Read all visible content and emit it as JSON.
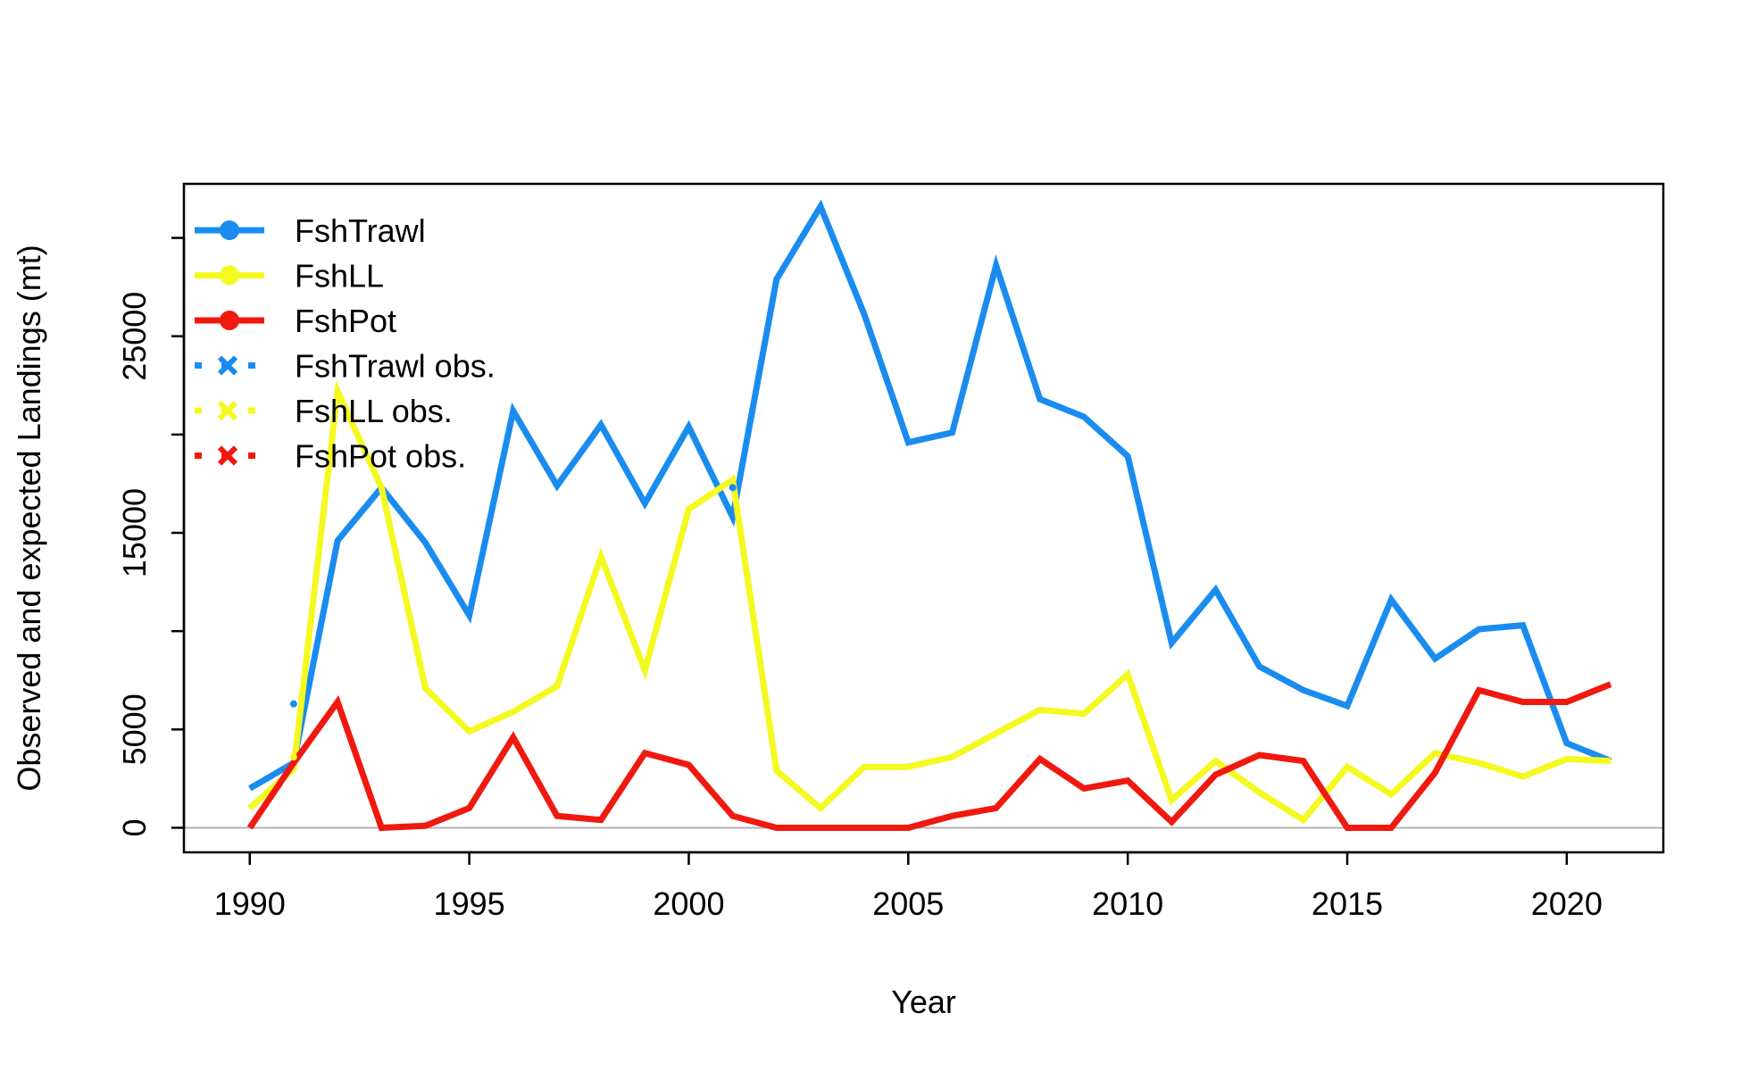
{
  "chart_data": {
    "type": "line",
    "xlabel": "Year",
    "ylabel": "Observed and expected Landings (mt)",
    "xlim": [
      1988.5,
      2022.2
    ],
    "ylim": [
      -1250,
      32750
    ],
    "x_ticks": [
      1990,
      1995,
      2000,
      2005,
      2010,
      2015,
      2020
    ],
    "y_ticks": [
      0,
      5000,
      10000,
      15000,
      20000,
      25000,
      30000
    ],
    "y_tick_labels": [
      "0",
      "5000",
      "",
      "15000",
      "",
      "25000",
      ""
    ],
    "grid": false,
    "zero_line": true,
    "legend_position": "top-left",
    "x": [
      1990,
      1991,
      1992,
      1993,
      1994,
      1995,
      1996,
      1997,
      1998,
      1999,
      2000,
      2001,
      2002,
      2003,
      2004,
      2005,
      2006,
      2007,
      2008,
      2009,
      2010,
      2011,
      2012,
      2013,
      2014,
      2015,
      2016,
      2017,
      2018,
      2019,
      2020,
      2021
    ],
    "series": [
      {
        "name": "FshTrawl",
        "color": "#1a8cf0",
        "values": [
          2000,
          3300,
          14600,
          17300,
          14500,
          10800,
          21200,
          17400,
          20500,
          16500,
          20400,
          15800,
          27900,
          31600,
          26100,
          19600,
          20100,
          28600,
          21800,
          20900,
          18900,
          9400,
          12100,
          8200,
          7000,
          6200,
          11600,
          8600,
          10100,
          10300,
          4300,
          3400
        ]
      },
      {
        "name": "FshLL",
        "color": "#f4f920",
        "values": [
          1000,
          3000,
          22200,
          17300,
          7100,
          4900,
          5900,
          7200,
          13800,
          8000,
          16200,
          17700,
          2900,
          1000,
          3100,
          3100,
          3600,
          4800,
          6000,
          5800,
          7800,
          1400,
          3400,
          1800,
          400,
          3100,
          1700,
          3800,
          3300,
          2600,
          3500,
          3400
        ]
      },
      {
        "name": "FshPot",
        "color": "#f0190f",
        "values": [
          0,
          3300,
          6400,
          0,
          100,
          1000,
          4600,
          600,
          400,
          3800,
          3200,
          600,
          0,
          0,
          0,
          0,
          600,
          1000,
          3500,
          2000,
          2400,
          300,
          2700,
          3700,
          3400,
          0,
          0,
          2800,
          7000,
          6400,
          6400,
          7300
        ]
      }
    ],
    "observed_series": [
      {
        "name": "FshTrawl obs.",
        "color": "#1a8cf0",
        "x": [
          1991,
          2001
        ],
        "values": [
          6300,
          17300
        ]
      },
      {
        "name": "FshLL obs.",
        "color": "#f4f920",
        "x": [
          1991
        ],
        "values": [
          3600
        ]
      },
      {
        "name": "FshPot obs.",
        "color": "#f0190f",
        "x": [],
        "values": []
      }
    ],
    "legend": [
      "FshTrawl",
      "FshLL",
      "FshPot",
      "FshTrawl obs.",
      "FshLL obs.",
      "FshPot obs."
    ]
  }
}
